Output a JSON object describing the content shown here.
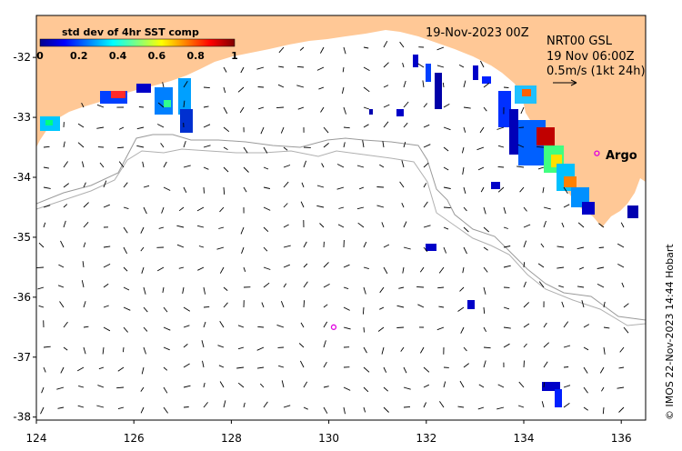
{
  "map": {
    "date_label": "19-Nov-2023 00Z",
    "product_label": "NRT00 GSL",
    "velocity_time": "19 Nov 06:00Z",
    "velocity_scale": "0.5m/s (1kt 24h)",
    "argo_label": "Argo",
    "credit": "© IMOS 22-Nov-2023 14:44 Hobart",
    "colors": {
      "land": "#ffc896",
      "ocean": "#ffffff",
      "argo": "#e000e0",
      "contour": "#9a9a9a"
    }
  },
  "colorbar": {
    "title": "std dev of 4hr SST comp",
    "ticks": [
      "0",
      "0.2",
      "0.4",
      "0.6",
      "0.8",
      "1"
    ]
  },
  "chart_data": {
    "type": "map",
    "x_ticks": [
      "124",
      "126",
      "128",
      "130",
      "132",
      "134",
      "136"
    ],
    "y_ticks": [
      "-32",
      "-33",
      "-34",
      "-35",
      "-36",
      "-37",
      "-38"
    ],
    "xlim": [
      124,
      136.5
    ],
    "ylim": [
      -38.05,
      -31.3
    ],
    "argo_floats": [
      {
        "lon": 135.5,
        "lat": -33.6,
        "labelled": true
      },
      {
        "lon": 130.1,
        "lat": -36.5,
        "labelled": false
      }
    ]
  }
}
